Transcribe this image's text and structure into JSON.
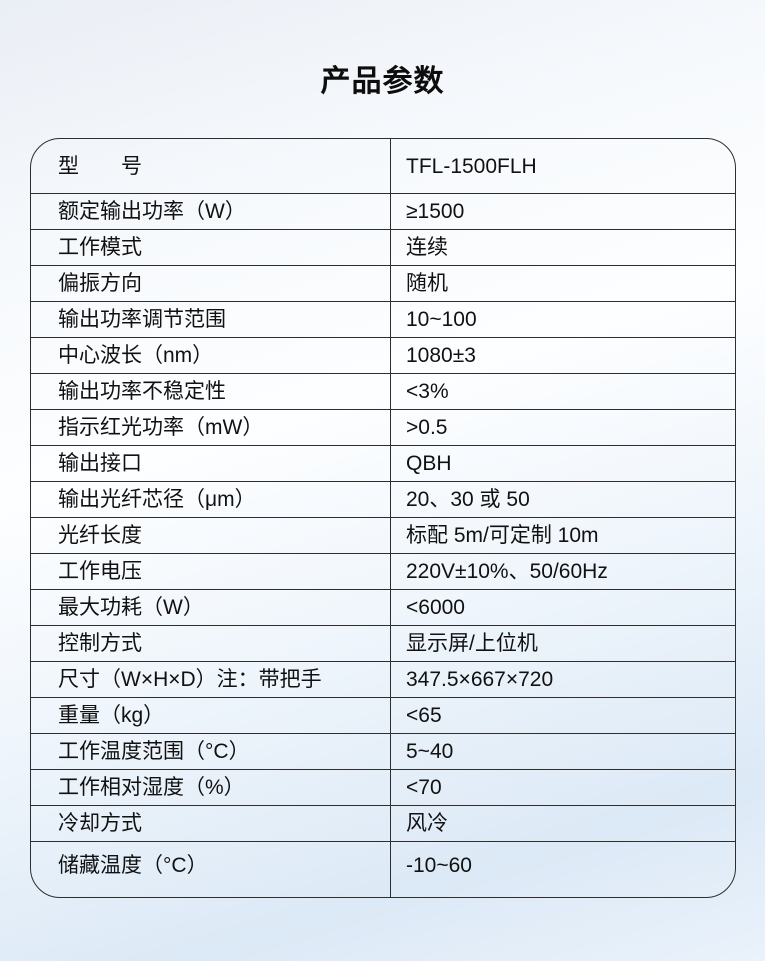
{
  "page": {
    "title": "产品参数"
  },
  "table": {
    "rows": [
      {
        "label": "型　　号",
        "value": "TFL-1500FLH"
      },
      {
        "label": "额定输出功率（W）",
        "value": "≥1500"
      },
      {
        "label": "工作模式",
        "value": "连续"
      },
      {
        "label": "偏振方向",
        "value": "随机"
      },
      {
        "label": "输出功率调节范围",
        "value": "10~100"
      },
      {
        "label": "中心波长（nm）",
        "value": "1080±3"
      },
      {
        "label": "输出功率不稳定性",
        "value": "<3%"
      },
      {
        "label": "指示红光功率（mW）",
        "value": ">0.5"
      },
      {
        "label": "输出接口",
        "value": "QBH"
      },
      {
        "label": "输出光纤芯径（μm）",
        "value": "20、30 或 50"
      },
      {
        "label": "光纤长度",
        "value": "标配 5m/可定制 10m"
      },
      {
        "label": "工作电压",
        "value": "220V±10%、50/60Hz"
      },
      {
        "label": "最大功耗（W）",
        "value": "<6000"
      },
      {
        "label": "控制方式",
        "value": "显示屏/上位机"
      },
      {
        "label": "尺寸（W×H×D）注：带把手",
        "value": "347.5×667×720"
      },
      {
        "label": "重量（kg）",
        "value": "<65"
      },
      {
        "label": "工作温度范围（°C）",
        "value": "5~40"
      },
      {
        "label": "工作相对湿度（%）",
        "value": "<70"
      },
      {
        "label": "冷却方式",
        "value": "风冷"
      },
      {
        "label": "储藏温度（°C）",
        "value": "-10~60"
      }
    ]
  }
}
